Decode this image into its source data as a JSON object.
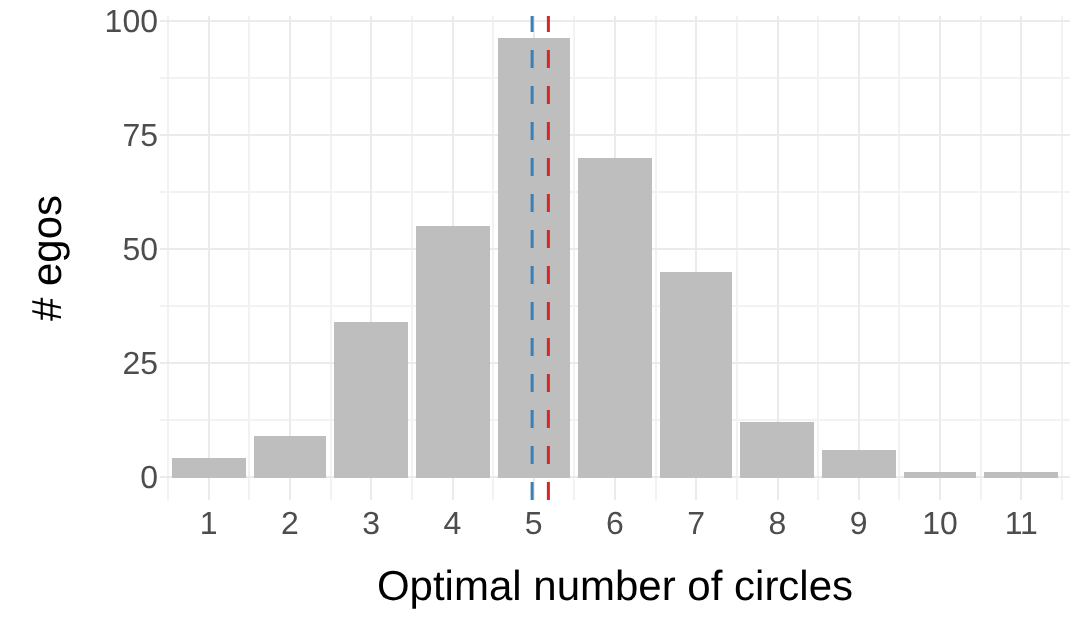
{
  "chart_data": {
    "type": "bar",
    "xlabel": "Optimal number of circles",
    "ylabel": "# egos",
    "x": [
      1,
      2,
      3,
      4,
      5,
      6,
      7,
      8,
      9,
      10,
      11
    ],
    "values": [
      4,
      9,
      34,
      55,
      96,
      70,
      45,
      12,
      6,
      1,
      1
    ],
    "color": "#bebebe",
    "xlim": [
      0.4,
      11.6
    ],
    "xticks": [
      1,
      2,
      3,
      4,
      5,
      6,
      7,
      8,
      9,
      10,
      11
    ],
    "ylim": [
      -5,
      101
    ],
    "yticks": [
      0,
      25,
      50,
      75,
      100
    ],
    "grid": true,
    "ref_lines": [
      {
        "axis": "x",
        "value": 4.98,
        "color": "#3a7fb5",
        "line_style": "dashed"
      },
      {
        "axis": "x",
        "value": 5.18,
        "color": "#d62728",
        "line_style": "dashed"
      }
    ]
  }
}
